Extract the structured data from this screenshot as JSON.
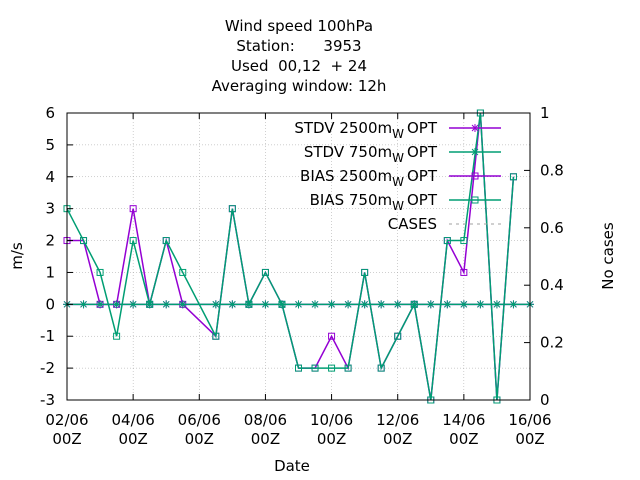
{
  "chart_data": {
    "type": "line",
    "title_lines": [
      "Wind speed 100hPa",
      "Station:      3953",
      "Used  00,12  + 24",
      "Averaging window: 12h"
    ],
    "xlabel": "Date",
    "ylabel": "m/s",
    "y2label": "No cases",
    "xlim": [
      0,
      14
    ],
    "ylim": [
      -3,
      6
    ],
    "y2lim": [
      0,
      1
    ],
    "xticks": [
      {
        "x": 0,
        "line1": "02/06",
        "line2": "00Z"
      },
      {
        "x": 2,
        "line1": "04/06",
        "line2": "00Z"
      },
      {
        "x": 4,
        "line1": "06/06",
        "line2": "00Z"
      },
      {
        "x": 6,
        "line1": "08/06",
        "line2": "00Z"
      },
      {
        "x": 8,
        "line1": "10/06",
        "line2": "00Z"
      },
      {
        "x": 10,
        "line1": "12/06",
        "line2": "00Z"
      },
      {
        "x": 12,
        "line1": "14/06",
        "line2": "00Z"
      },
      {
        "x": 14,
        "line1": "16/06",
        "line2": "00Z"
      }
    ],
    "yticks": [
      "-3",
      "-2",
      "-1",
      "0",
      "1",
      "2",
      "3",
      "4",
      "5",
      "6"
    ],
    "y2ticks": [
      "0",
      "0.2",
      "0.4",
      "0.6",
      "0.8",
      "1"
    ],
    "grid": true,
    "legend_position": "top-right",
    "series": [
      {
        "name": "STDV 2500m",
        "sub": "W",
        "suffix": "OPT",
        "color": "#9400d3",
        "marker": "star",
        "x": [
          0,
          0.5,
          1,
          1.5,
          2,
          2.5,
          3,
          3.5,
          4.5,
          5,
          5.5,
          6,
          6.5,
          7,
          7.5,
          8,
          8.5,
          9,
          9.5,
          10,
          10.5,
          11,
          11.5,
          12,
          12.5,
          13,
          13.5,
          14
        ],
        "values": [
          0,
          0,
          0,
          0,
          0,
          0,
          0,
          0,
          0,
          0,
          0,
          0,
          0,
          0,
          0,
          0,
          0,
          0,
          0,
          0,
          0,
          0,
          0,
          0,
          0,
          0,
          0,
          0
        ]
      },
      {
        "name": "STDV 750m",
        "sub": "W",
        "suffix": "OPT",
        "color": "#009e73",
        "marker": "star",
        "x": [
          0,
          0.5,
          1,
          1.5,
          2,
          2.5,
          3,
          3.5,
          4.5,
          5,
          5.5,
          6,
          6.5,
          7,
          7.5,
          8,
          8.5,
          9,
          9.5,
          10,
          10.5,
          11,
          11.5,
          12,
          12.5,
          13,
          13.5,
          14
        ],
        "values": [
          0,
          0,
          0,
          0,
          0,
          0,
          0,
          0,
          0,
          0,
          0,
          0,
          0,
          0,
          0,
          0,
          0,
          0,
          0,
          0,
          0,
          0,
          0,
          0,
          0,
          0,
          0,
          0
        ]
      },
      {
        "name": "BIAS 2500m",
        "sub": "W",
        "suffix": "OPT",
        "color": "#9400d3",
        "marker": "square",
        "x": [
          0,
          0.5,
          1,
          1.5,
          2,
          2.5,
          3,
          3.5,
          4.5,
          5,
          5.5,
          6,
          6.5,
          7,
          7.5,
          8,
          8.5,
          9,
          9.5,
          10,
          10.5,
          11,
          11.5,
          12,
          12.5,
          13,
          13.5,
          14
        ],
        "values": [
          2,
          2,
          0,
          0,
          3,
          0,
          2,
          0,
          -1,
          3,
          0,
          1,
          0,
          -2,
          -2,
          -1,
          -2,
          1,
          -2,
          -1,
          0,
          -3,
          2,
          1,
          6,
          -3,
          4,
          null
        ]
      },
      {
        "name": "BIAS 750m",
        "sub": "W",
        "suffix": "OPT",
        "color": "#009e73",
        "marker": "square",
        "x": [
          0,
          0.5,
          1,
          1.5,
          2,
          2.5,
          3,
          3.5,
          4.5,
          5,
          5.5,
          6,
          6.5,
          7,
          7.5,
          8,
          8.5,
          9,
          9.5,
          10,
          10.5,
          11,
          11.5,
          12,
          12.5,
          13,
          13.5,
          14
        ],
        "values": [
          3,
          2,
          1,
          -1,
          2,
          0,
          2,
          1,
          -1,
          3,
          0,
          1,
          0,
          -2,
          -2,
          -2,
          -2,
          1,
          -2,
          -1,
          0,
          -3,
          2,
          2,
          6,
          -3,
          4,
          null
        ]
      },
      {
        "name": "CASES",
        "sub": "",
        "suffix": "",
        "color": "#a0a0a0",
        "marker": "none",
        "dashed": true,
        "x": [],
        "values": []
      }
    ]
  }
}
